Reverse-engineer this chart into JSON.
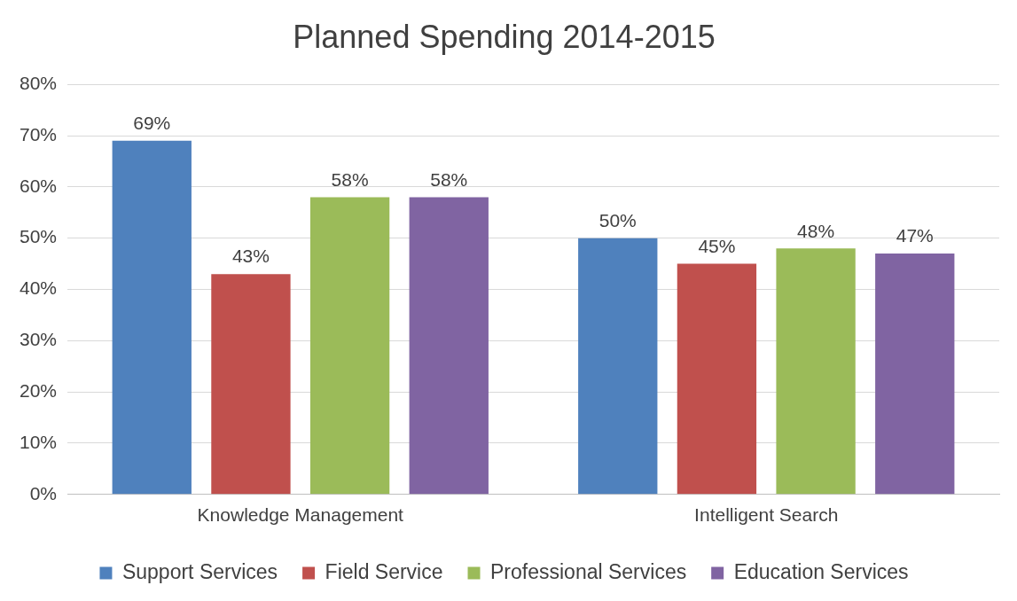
{
  "chart_data": {
    "type": "bar",
    "title": "Planned Spending 2014-2015",
    "categories": [
      "Knowledge Management",
      "Intelligent Search"
    ],
    "series": [
      {
        "name": "Support Services",
        "color": "#4f81bd",
        "values": [
          69,
          50
        ],
        "value_labels": [
          "69%",
          "50%"
        ]
      },
      {
        "name": "Field Service",
        "color": "#c0504d",
        "values": [
          43,
          45
        ],
        "value_labels": [
          "43%",
          "45%"
        ]
      },
      {
        "name": "Professional Services",
        "color": "#9bbb59",
        "values": [
          58,
          48
        ],
        "value_labels": [
          "58%",
          "48%"
        ]
      },
      {
        "name": "Education Services",
        "color": "#8064a2",
        "values": [
          58,
          47
        ],
        "value_labels": [
          "58%",
          "47%"
        ]
      }
    ],
    "ylim": [
      0,
      80
    ],
    "yticks": [
      {
        "value": 0,
        "label": "0%"
      },
      {
        "value": 10,
        "label": "10%"
      },
      {
        "value": 20,
        "label": "20%"
      },
      {
        "value": 30,
        "label": "30%"
      },
      {
        "value": 40,
        "label": "40%"
      },
      {
        "value": 50,
        "label": "50%"
      },
      {
        "value": 60,
        "label": "60%"
      },
      {
        "value": 70,
        "label": "70%"
      },
      {
        "value": 80,
        "label": "80%"
      }
    ],
    "grid": "y",
    "legend": "bottom"
  }
}
